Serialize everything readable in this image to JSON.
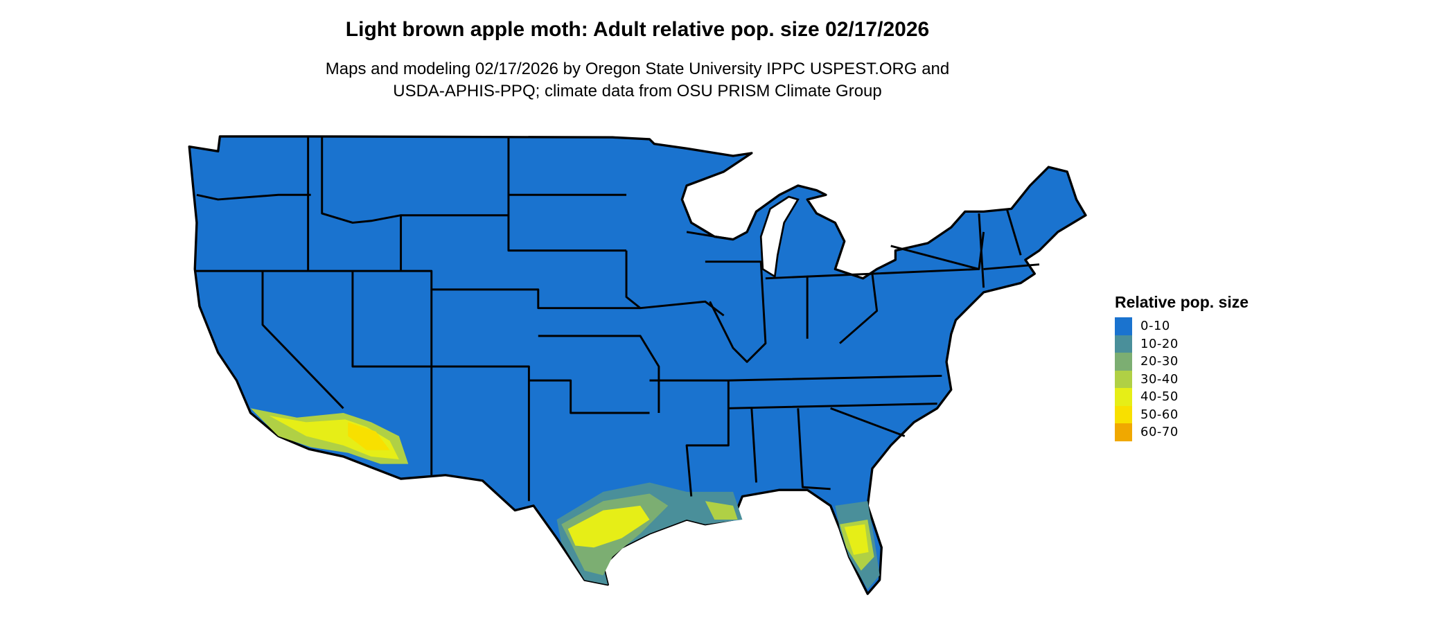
{
  "title": "Light brown apple moth: Adult relative pop. size 02/17/2026",
  "subtitle_lines": [
    "Maps and modeling 02/17/2026 by Oregon State University IPPC USPEST.ORG and",
    "USDA-APHIS-PPQ; climate data from OSU PRISM Climate Group"
  ],
  "legend": {
    "title": "Relative pop. size",
    "items": [
      {
        "label": "0-10",
        "color": "#1a73cf"
      },
      {
        "label": "10-20",
        "color": "#4a8f9a"
      },
      {
        "label": "20-30",
        "color": "#7cae72"
      },
      {
        "label": "30-40",
        "color": "#b0d045"
      },
      {
        "label": "40-50",
        "color": "#e6ee17"
      },
      {
        "label": "50-60",
        "color": "#f8e000"
      },
      {
        "label": "60-70",
        "color": "#f0a800"
      }
    ]
  },
  "map": {
    "region": "Contiguous United States",
    "base_color": "#1a73cf",
    "boundary_color": "#000000",
    "hotspots": [
      "southern Texas",
      "central/southern Florida",
      "southern Arizona",
      "southern California",
      "Louisiana coast"
    ]
  }
}
